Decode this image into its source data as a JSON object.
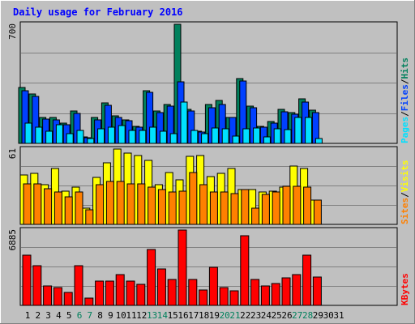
{
  "title": "Daily usage for February 2016",
  "colors": {
    "hits": "#00805c",
    "files": "#0040ff",
    "pages": "#00e0ff",
    "visits": "#ffff00",
    "sites": "#ff8000",
    "kbytes": "#ff0000",
    "weekend_label": "#00805c",
    "weekday_label": "#000000",
    "title": "#0000ff",
    "panel_bg": "#c0c0c0"
  },
  "chart_data": {
    "type": "bar",
    "x": [
      "1",
      "2",
      "3",
      "4",
      "5",
      "6",
      "7",
      "8",
      "9",
      "10",
      "11",
      "12",
      "13",
      "14",
      "15",
      "16",
      "17",
      "18",
      "19",
      "20",
      "21",
      "22",
      "23",
      "24",
      "25",
      "26",
      "27",
      "28",
      "29",
      "30",
      "31"
    ],
    "weekend_days": [
      6,
      7,
      13,
      14,
      20,
      21,
      27,
      28
    ],
    "panels": [
      {
        "id": "hits-files-pages",
        "max_label": "700",
        "ymax": 700,
        "legend": [
          {
            "text": "Hits",
            "color": "#00805c"
          },
          {
            "text": "Files",
            "color": "#0040ff"
          },
          {
            "text": "Pages",
            "color": "#00e0ff"
          }
        ],
        "series": [
          {
            "name": "Hits",
            "color": "#00805c",
            "values": [
              330,
              290,
              150,
              150,
              120,
              190,
              40,
              150,
              240,
              160,
              140,
              100,
              310,
              190,
              230,
              700,
              200,
              70,
              230,
              250,
              150,
              380,
              220,
              100,
              130,
              200,
              180,
              260,
              195,
              0,
              0
            ]
          },
          {
            "name": "Files",
            "color": "#0040ff",
            "values": [
              310,
              275,
              145,
              140,
              110,
              175,
              35,
              140,
              225,
              150,
              135,
              95,
              300,
              180,
              220,
              360,
              190,
              65,
              210,
              230,
              150,
              365,
              210,
              95,
              120,
              185,
              170,
              245,
              180,
              0,
              0
            ]
          },
          {
            "name": "Pages",
            "color": "#00e0ff",
            "values": [
              120,
              95,
              70,
              110,
              55,
              75,
              30,
              85,
              95,
              105,
              75,
              75,
              95,
              70,
              55,
              245,
              75,
              55,
              90,
              85,
              45,
              85,
              90,
              40,
              85,
              80,
              150,
              150,
              28,
              0,
              0
            ]
          }
        ]
      },
      {
        "id": "visits-sites",
        "max_label": "61",
        "ymax": 61,
        "legend": [
          {
            "text": "Visits",
            "color": "#ffff00"
          },
          {
            "text": "Sites",
            "color": "#ff8000"
          }
        ],
        "series": [
          {
            "name": "Visits",
            "color": "#ffff00",
            "values": [
              40,
              41,
              32,
              45,
              27,
              30,
              13,
              38,
              50,
              61,
              58,
              56,
              52,
              32,
              42,
              36,
              55,
              56,
              39,
              41,
              45,
              28,
              28,
              26,
              27,
              30,
              47,
              45,
              20,
              0,
              0
            ]
          },
          {
            "name": "Sites",
            "color": "#ff8000",
            "values": [
              33,
              33,
              29,
              26,
              22,
              26,
              12,
              32,
              35,
              35,
              33,
              33,
              30,
              28,
              26,
              27,
              42,
              32,
              26,
              26,
              25,
              28,
              13,
              24,
              26,
              31,
              31,
              30,
              20,
              0,
              0
            ]
          }
        ]
      },
      {
        "id": "kbytes",
        "max_label": "6885",
        "ymax": 6885,
        "legend": [
          {
            "text": "KBytes",
            "color": "#ff0000"
          }
        ],
        "series": [
          {
            "name": "KBytes",
            "color": "#ff0000",
            "values": [
              4600,
              3600,
              1750,
              1600,
              1200,
              3600,
              650,
              2200,
              2250,
              2800,
              2200,
              1900,
              5100,
              3300,
              2400,
              6885,
              2400,
              1400,
              3500,
              1600,
              1300,
              6400,
              2400,
              1750,
              2000,
              2500,
              2800,
              4600,
              2600,
              0,
              0
            ]
          }
        ]
      }
    ]
  }
}
